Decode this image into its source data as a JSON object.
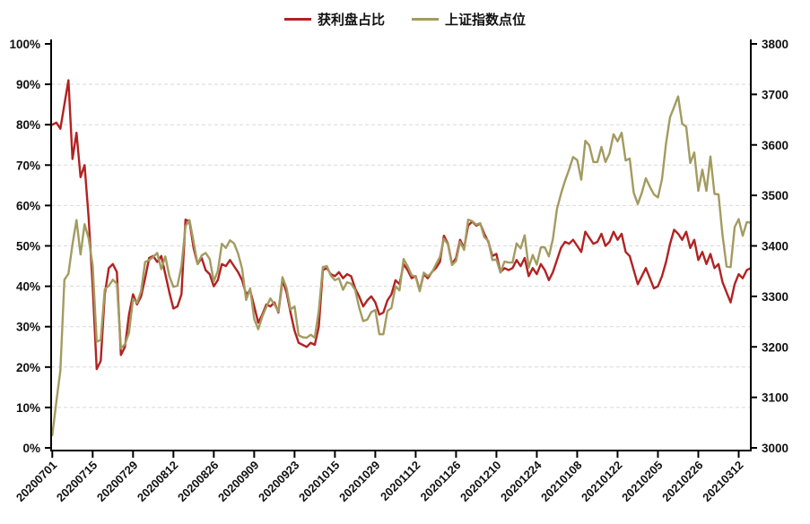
{
  "legend": [
    {
      "label": "获利盘占比",
      "color": "#B22222"
    },
    {
      "label": "上证指数点位",
      "color": "#A39B60"
    }
  ],
  "chart_data": {
    "type": "line",
    "title": "",
    "legend_position": "top-center",
    "grid": "horizontal dashed lines at each 10% step of left axis",
    "left_axis": {
      "min": 0,
      "max": 100,
      "step": 10,
      "unit": "%",
      "tick_labels": [
        "0%",
        "10%",
        "20%",
        "30%",
        "40%",
        "50%",
        "60%",
        "70%",
        "80%",
        "90%",
        "100%"
      ]
    },
    "right_axis": {
      "min": 3000,
      "max": 3800,
      "step": 100,
      "tick_labels": [
        "3000",
        "3100",
        "3200",
        "3300",
        "3400",
        "3500",
        "3600",
        "3700",
        "3800"
      ]
    },
    "x_tick_labels": [
      "20200701",
      "20200715",
      "20200729",
      "20200812",
      "20200826",
      "20200909",
      "20200923",
      "20201015",
      "20201029",
      "20201112",
      "20201126",
      "20201210",
      "20201224",
      "20210108",
      "20210122",
      "20210205",
      "20210226",
      "20210312"
    ],
    "dates": [
      "20200701",
      "20200702",
      "20200703",
      "20200706",
      "20200707",
      "20200708",
      "20200709",
      "20200710",
      "20200713",
      "20200714",
      "20200715",
      "20200716",
      "20200717",
      "20200720",
      "20200721",
      "20200722",
      "20200723",
      "20200724",
      "20200727",
      "20200728",
      "20200729",
      "20200730",
      "20200731",
      "20200803",
      "20200804",
      "20200805",
      "20200806",
      "20200807",
      "20200810",
      "20200811",
      "20200812",
      "20200813",
      "20200814",
      "20200817",
      "20200818",
      "20200819",
      "20200820",
      "20200821",
      "20200824",
      "20200825",
      "20200826",
      "20200827",
      "20200828",
      "20200831",
      "20200901",
      "20200902",
      "20200903",
      "20200904",
      "20200907",
      "20200908",
      "20200909",
      "20200910",
      "20200911",
      "20200914",
      "20200915",
      "20200916",
      "20200917",
      "20200918",
      "20200921",
      "20200922",
      "20200923",
      "20200924",
      "20200925",
      "20200928",
      "20200929",
      "20200930",
      "20201009",
      "20201012",
      "20201013",
      "20201014",
      "20201015",
      "20201016",
      "20201019",
      "20201020",
      "20201021",
      "20201022",
      "20201023",
      "20201026",
      "20201027",
      "20201028",
      "20201029",
      "20201030",
      "20201102",
      "20201103",
      "20201104",
      "20201105",
      "20201106",
      "20201109",
      "20201110",
      "20201111",
      "20201112",
      "20201113",
      "20201116",
      "20201117",
      "20201118",
      "20201119",
      "20201120",
      "20201123",
      "20201124",
      "20201125",
      "20201126",
      "20201127",
      "20201130",
      "20201201",
      "20201202",
      "20201203",
      "20201204",
      "20201207",
      "20201208",
      "20201209",
      "20201210",
      "20201211",
      "20201214",
      "20201215",
      "20201216",
      "20201217",
      "20201218",
      "20201221",
      "20201222",
      "20201223",
      "20201224",
      "20201225",
      "20201228",
      "20201229",
      "20201230",
      "20201231",
      "20210104",
      "20210105",
      "20210106",
      "20210107",
      "20210108",
      "20210111",
      "20210112",
      "20210113",
      "20210114",
      "20210115",
      "20210118",
      "20210119",
      "20210120",
      "20210121",
      "20210122",
      "20210125",
      "20210126",
      "20210127",
      "20210128",
      "20210129",
      "20210201",
      "20210202",
      "20210203",
      "20210204",
      "20210205",
      "20210208",
      "20210209",
      "20210210",
      "20210218",
      "20210219",
      "20210222",
      "20210223",
      "20210224",
      "20210225",
      "20210226",
      "20210301",
      "20210302",
      "20210303",
      "20210304",
      "20210305",
      "20210308",
      "20210309",
      "20210310",
      "20210311",
      "20210312",
      "20210315",
      "20210316",
      "20210317"
    ],
    "series": [
      {
        "name": "获利盘占比",
        "axis": "left",
        "unit": "%",
        "color": "#B22222",
        "values": [
          80,
          80.5,
          79,
          85,
          91,
          71.5,
          78,
          67,
          70,
          57,
          40,
          19.5,
          21.5,
          38,
          44.5,
          45.5,
          43.5,
          23,
          25,
          33,
          38,
          35.5,
          37.5,
          42,
          47,
          47.5,
          46,
          47.5,
          43,
          38.5,
          34.5,
          35,
          38,
          56.5,
          56,
          49.5,
          45.5,
          47,
          44,
          43,
          40,
          41.5,
          45.5,
          45,
          46.5,
          45,
          43.5,
          41.5,
          38,
          39,
          35,
          31,
          33,
          35.5,
          35,
          36,
          33.5,
          41.5,
          38.5,
          33.5,
          29,
          26,
          25.5,
          25,
          26,
          25.5,
          30,
          44,
          44.5,
          43,
          42.5,
          43.5,
          42,
          43,
          42.5,
          39.5,
          37.5,
          35,
          36.5,
          37.5,
          36,
          33,
          33.5,
          36.5,
          38,
          41.5,
          40.5,
          45.5,
          44,
          42,
          42.5,
          39,
          43,
          42,
          43.5,
          44.5,
          46,
          52.5,
          50.5,
          45.5,
          47,
          51.5,
          49.5,
          55,
          56,
          55,
          55.5,
          53,
          51,
          47.5,
          48,
          43.5,
          44.5,
          44,
          44.5,
          46.5,
          45,
          47,
          42.5,
          44.5,
          43,
          45.5,
          44,
          41.5,
          43.5,
          46.5,
          49.5,
          51,
          50.5,
          51.5,
          50,
          48.5,
          53.5,
          52,
          50.5,
          51,
          53,
          50,
          51,
          53.5,
          51.5,
          53,
          48.5,
          47.5,
          44,
          40.5,
          42.5,
          44.5,
          42,
          39.5,
          40,
          42.5,
          46,
          50.5,
          54,
          53,
          51.5,
          53.5,
          49.5,
          51.5,
          46.5,
          48.5,
          45.5,
          48,
          44.5,
          45.5,
          41,
          38.5,
          36,
          40.5,
          43,
          42,
          44,
          44.5
        ]
      },
      {
        "name": "上证指数点位",
        "axis": "right",
        "unit": "points",
        "color": "#A39B60",
        "values": [
          3025,
          3091,
          3153,
          3333,
          3345,
          3403,
          3451,
          3383,
          3443,
          3415,
          3361,
          3210,
          3214,
          3314,
          3321,
          3333,
          3325,
          3197,
          3205,
          3228,
          3295,
          3287,
          3310,
          3368,
          3372,
          3378,
          3386,
          3354,
          3379,
          3340,
          3319,
          3321,
          3360,
          3439,
          3451,
          3408,
          3364,
          3381,
          3386,
          3374,
          3330,
          3350,
          3404,
          3396,
          3411,
          3405,
          3385,
          3355,
          3293,
          3316,
          3255,
          3235,
          3260,
          3279,
          3296,
          3284,
          3270,
          3338,
          3317,
          3274,
          3280,
          3223,
          3219,
          3218,
          3224,
          3218,
          3272,
          3358,
          3360,
          3341,
          3332,
          3336,
          3313,
          3328,
          3325,
          3313,
          3278,
          3251,
          3254,
          3269,
          3273,
          3225,
          3225,
          3271,
          3277,
          3320,
          3312,
          3374,
          3360,
          3342,
          3339,
          3310,
          3347,
          3340,
          3347,
          3363,
          3378,
          3414,
          3403,
          3362,
          3370,
          3408,
          3392,
          3452,
          3449,
          3442,
          3445,
          3417,
          3410,
          3372,
          3373,
          3347,
          3369,
          3367,
          3367,
          3405,
          3395,
          3421,
          3357,
          3382,
          3363,
          3397,
          3397,
          3379,
          3414,
          3473,
          3503,
          3529,
          3551,
          3576,
          3570,
          3531,
          3608,
          3599,
          3566,
          3566,
          3596,
          3566,
          3583,
          3621,
          3607,
          3624,
          3569,
          3573,
          3505,
          3483,
          3505,
          3534,
          3517,
          3502,
          3496,
          3532,
          3603,
          3655,
          3675,
          3696,
          3642,
          3636,
          3564,
          3585,
          3509,
          3551,
          3509,
          3577,
          3503,
          3502,
          3421,
          3359,
          3358,
          3437,
          3453,
          3420,
          3447,
          3446
        ]
      }
    ]
  }
}
